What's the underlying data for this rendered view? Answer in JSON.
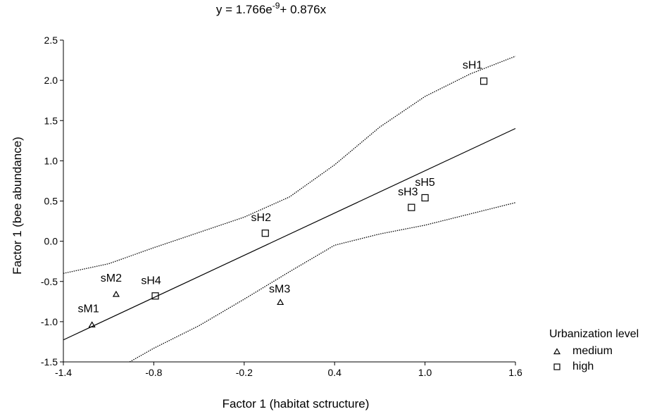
{
  "chart_data": {
    "type": "scatter",
    "title_prefix": "y = 1.766e",
    "title_exp": "-9",
    "title_suffix": "+ 0.876x",
    "xlabel": "Factor 1 (habitat sctructure)",
    "ylabel": "Factor 1 (bee abundance)",
    "xlim": [
      -1.4,
      1.6
    ],
    "ylim": [
      -1.5,
      2.5
    ],
    "xticks": [
      "-1.4",
      "-0.8",
      "-0.2",
      "0.4",
      "1.0",
      "1.6"
    ],
    "yticks": [
      "2.5",
      "2.0",
      "1.5",
      "1.0",
      "0.5",
      "0.0",
      "-0.5",
      "-1.0",
      "-1.5"
    ],
    "grid": false,
    "legend_position": "bottom-right, outside plot",
    "legend_title": "Urbanization level",
    "series": [
      {
        "name": "medium",
        "marker": "triangle",
        "points": [
          {
            "label": "sM1",
            "x": -1.21,
            "y": -1.04
          },
          {
            "label": "sM2",
            "x": -1.05,
            "y": -0.66
          },
          {
            "label": "sM3",
            "x": 0.04,
            "y": -0.76
          }
        ]
      },
      {
        "name": "high",
        "marker": "square",
        "points": [
          {
            "label": "sH1",
            "x": 1.39,
            "y": 1.99
          },
          {
            "label": "sH2",
            "x": -0.06,
            "y": 0.1
          },
          {
            "label": "sH3",
            "x": 0.91,
            "y": 0.42
          },
          {
            "label": "sH4",
            "x": -0.79,
            "y": -0.68
          },
          {
            "label": "sH5",
            "x": 1.0,
            "y": 0.54
          }
        ]
      }
    ],
    "regression": {
      "intercept": 1.766e-09,
      "slope": 0.876
    },
    "confidence_band": {
      "upper": [
        [
          -1.4,
          -0.4
        ],
        [
          -1.1,
          -0.28
        ],
        [
          -0.8,
          -0.08
        ],
        [
          -0.5,
          0.11
        ],
        [
          -0.2,
          0.3
        ],
        [
          0.1,
          0.55
        ],
        [
          0.4,
          0.95
        ],
        [
          0.7,
          1.42
        ],
        [
          1.0,
          1.8
        ],
        [
          1.3,
          2.08
        ],
        [
          1.6,
          2.3
        ]
      ],
      "lower": [
        [
          -0.96,
          -1.5
        ],
        [
          -0.8,
          -1.33
        ],
        [
          -0.5,
          -1.05
        ],
        [
          -0.2,
          -0.72
        ],
        [
          0.1,
          -0.38
        ],
        [
          0.4,
          -0.05
        ],
        [
          0.7,
          0.09
        ],
        [
          1.0,
          0.2
        ],
        [
          1.3,
          0.34
        ],
        [
          1.6,
          0.48
        ]
      ]
    }
  }
}
